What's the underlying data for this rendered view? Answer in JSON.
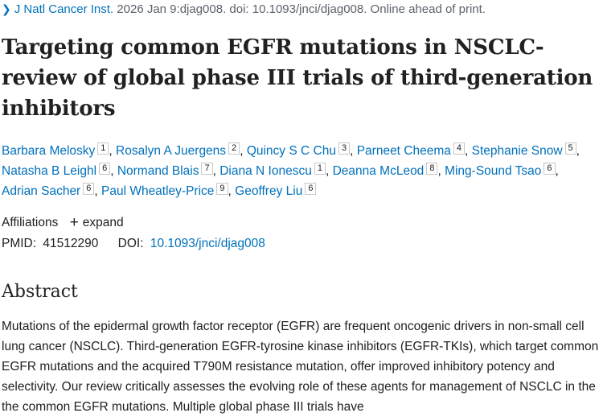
{
  "citation": {
    "chevron_icon": "chevron-right-icon",
    "journal": "J Natl Cancer Inst.",
    "details": "2026 Jan 9:djag008. doi: 10.1093/jnci/djag008. Online ahead of print."
  },
  "title": "Targeting common EGFR mutations in NSCLC-review of global phase III trials of third-generation inhibitors",
  "authors": [
    {
      "name": "Barbara Melosky",
      "aff": "1"
    },
    {
      "name": "Rosalyn A Juergens",
      "aff": "2"
    },
    {
      "name": "Quincy S C Chu",
      "aff": "3"
    },
    {
      "name": "Parneet Cheema",
      "aff": "4"
    },
    {
      "name": "Stephanie Snow",
      "aff": "5"
    },
    {
      "name": "Natasha B Leighl",
      "aff": "6"
    },
    {
      "name": "Normand Blais",
      "aff": "7"
    },
    {
      "name": "Diana N Ionescu",
      "aff": "1"
    },
    {
      "name": "Deanna McLeod",
      "aff": "8"
    },
    {
      "name": "Ming-Sound Tsao",
      "aff": "6"
    },
    {
      "name": "Adrian Sacher",
      "aff": "6"
    },
    {
      "name": "Paul Wheatley-Price",
      "aff": "9"
    },
    {
      "name": "Geoffrey Liu",
      "aff": "6"
    }
  ],
  "affiliations": {
    "label": "Affiliations",
    "expand_label": "expand",
    "plus_icon": "plus-icon"
  },
  "identifiers": {
    "pmid_label": "PMID:",
    "pmid": "41512290",
    "doi_label": "DOI:",
    "doi": "10.1093/jnci/djag008"
  },
  "abstract": {
    "heading": "Abstract",
    "text": "Mutations of the epidermal growth factor receptor (EGFR) are frequent oncogenic drivers in non-small cell lung cancer (NSCLC). Third-generation EGFR-tyrosine kinase inhibitors (EGFR-TKIs), which target common EGFR mutations and the acquired T790M resistance mutation, offer improved inhibitory potency and selectivity. Our review critically assesses the evolving role of these agents for management of NSCLC in the the common EGFR mutations. Multiple global phase III trials have"
  },
  "colors": {
    "link": "#0071bc",
    "text": "#212121",
    "muted": "#5b616b"
  }
}
